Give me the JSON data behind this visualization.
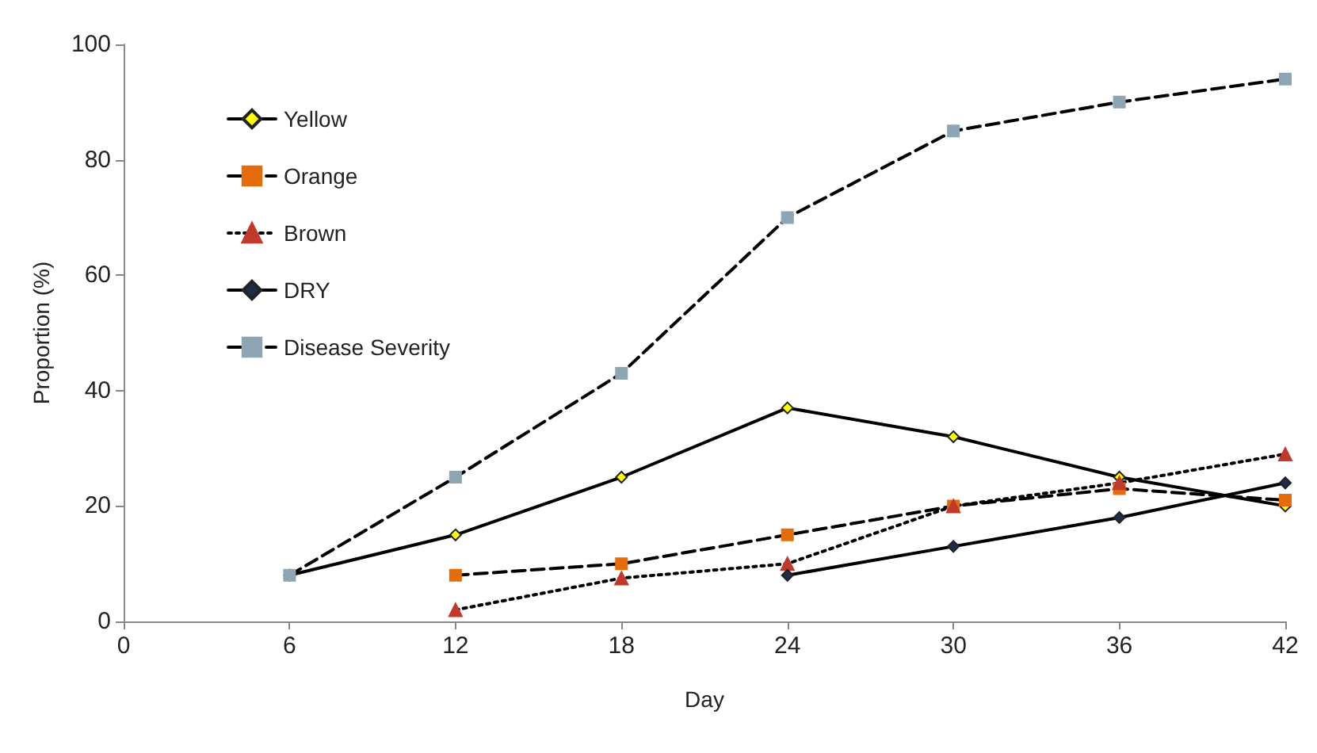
{
  "chart_data": {
    "type": "line",
    "xlabel": "Day",
    "ylabel": "Proportion (%)",
    "xlim": [
      0,
      42
    ],
    "xticks": [
      0,
      6,
      12,
      18,
      24,
      30,
      36,
      42
    ],
    "ylim": [
      0,
      100
    ],
    "yticks": [
      0,
      20,
      40,
      60,
      80,
      100
    ],
    "grid": false,
    "legend": "top left",
    "series": [
      {
        "name": "Yellow",
        "color": "#ffff00",
        "marker": "diamond",
        "line_style": "solid",
        "x": [
          6,
          12,
          18,
          24,
          30,
          36,
          42
        ],
        "values": [
          8,
          15,
          25,
          37,
          32,
          25,
          20
        ]
      },
      {
        "name": "Orange",
        "color": "#e46c0a",
        "marker": "square",
        "line_style": "dashed",
        "x": [
          12,
          18,
          24,
          30,
          36,
          42
        ],
        "values": [
          8,
          10,
          15,
          20,
          23,
          21
        ]
      },
      {
        "name": "Brown",
        "color": "#c0392b",
        "marker": "triangle",
        "line_style": "dotted",
        "x": [
          12,
          18,
          24,
          30,
          36,
          42
        ],
        "values": [
          2,
          7.5,
          10,
          20,
          24,
          29
        ]
      },
      {
        "name": "DRY",
        "color": "#1f2d4a",
        "marker": "diamond",
        "line_style": "solid",
        "x": [
          24,
          30,
          36,
          42
        ],
        "values": [
          8,
          13,
          18,
          24
        ]
      },
      {
        "name": "Disease Severity",
        "color": "#8ea5b3",
        "marker": "square",
        "line_style": "dashed",
        "x": [
          6,
          12,
          18,
          24,
          30,
          36,
          42
        ],
        "values": [
          8,
          25,
          43,
          70,
          85,
          90,
          94
        ]
      }
    ]
  }
}
